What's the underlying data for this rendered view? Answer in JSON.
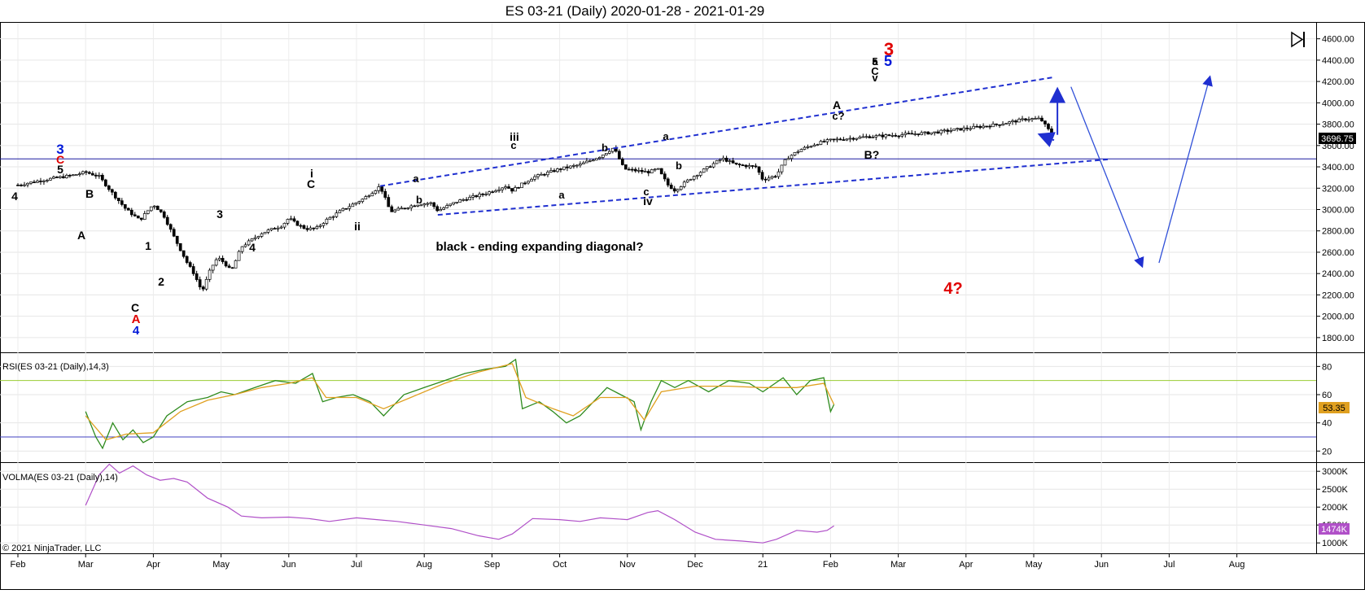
{
  "chart_data": [
    {
      "type": "candlestick",
      "title": "ES 03-21 (Daily)  2020-01-28 - 2021-01-29",
      "ylim": [
        1700,
        4750
      ],
      "y_ticks": [
        "1800.00",
        "2000.00",
        "2200.00",
        "2400.00",
        "2600.00",
        "2800.00",
        "3000.00",
        "3200.00",
        "3400.00",
        "3600.00",
        "3800.00",
        "4000.00",
        "4200.00",
        "4400.00",
        "4600.00"
      ],
      "x_ticks": [
        "Feb",
        "Mar",
        "Apr",
        "May",
        "Jun",
        "Jul",
        "Aug",
        "Sep",
        "Oct",
        "Nov",
        "Dec",
        "21",
        "Feb",
        "Mar",
        "Apr",
        "May",
        "Jun",
        "Jul",
        "Aug"
      ],
      "last_price": "3696.75",
      "horizontal_line": 3475,
      "price_path": [
        [
          0,
          3230
        ],
        [
          0.4,
          3280
        ],
        [
          0.8,
          3320
        ],
        [
          1.0,
          3350
        ],
        [
          1.2,
          3310
        ],
        [
          1.4,
          3150
        ],
        [
          1.6,
          3000
        ],
        [
          1.8,
          2900
        ],
        [
          2.0,
          3050
        ],
        [
          2.15,
          2950
        ],
        [
          2.3,
          2750
        ],
        [
          2.5,
          2500
        ],
        [
          2.6,
          2400
        ],
        [
          2.72,
          2230
        ],
        [
          2.85,
          2450
        ],
        [
          2.95,
          2550
        ],
        [
          3.05,
          2500
        ],
        [
          3.15,
          2420
        ],
        [
          3.3,
          2650
        ],
        [
          3.6,
          2780
        ],
        [
          3.9,
          2850
        ],
        [
          4.0,
          2920
        ],
        [
          4.1,
          2870
        ],
        [
          4.25,
          2820
        ],
        [
          4.4,
          2820
        ],
        [
          4.55,
          2900
        ],
        [
          4.8,
          3000
        ],
        [
          5.1,
          3100
        ],
        [
          5.35,
          3220
        ],
        [
          5.5,
          2980
        ],
        [
          5.9,
          3050
        ],
        [
          6.1,
          3060
        ],
        [
          6.2,
          2990
        ],
        [
          6.5,
          3080
        ],
        [
          6.9,
          3150
        ],
        [
          7.2,
          3220
        ],
        [
          7.3,
          3180
        ],
        [
          7.6,
          3300
        ],
        [
          8.0,
          3380
        ],
        [
          8.3,
          3420
        ],
        [
          8.6,
          3500
        ],
        [
          8.8,
          3580
        ],
        [
          8.95,
          3380
        ],
        [
          9.3,
          3350
        ],
        [
          9.45,
          3380
        ],
        [
          9.6,
          3230
        ],
        [
          9.7,
          3180
        ],
        [
          9.95,
          3300
        ],
        [
          10.2,
          3400
        ],
        [
          10.4,
          3480
        ],
        [
          10.6,
          3420
        ],
        [
          10.9,
          3400
        ],
        [
          11.0,
          3280
        ],
        [
          11.2,
          3320
        ],
        [
          11.35,
          3480
        ],
        [
          11.55,
          3560
        ],
        [
          11.8,
          3620
        ],
        [
          12.0,
          3650
        ],
        [
          12.5,
          3680
        ],
        [
          13.0,
          3700
        ],
        [
          13.5,
          3720
        ],
        [
          14.0,
          3760
        ],
        [
          14.5,
          3800
        ],
        [
          14.9,
          3850
        ],
        [
          15.1,
          3850
        ],
        [
          15.25,
          3720
        ],
        [
          15.3,
          3696
        ]
      ],
      "channel_lines": [
        {
          "from": [
            5.35,
            3220
          ],
          "to": [
            15.3,
            4240
          ]
        },
        {
          "from": [
            6.2,
            2950
          ],
          "to": [
            16.1,
            3470
          ]
        }
      ],
      "projection": [
        [
          15.3,
          3696
        ],
        [
          16.1,
          3420
        ],
        [
          16.6,
          2500
        ],
        [
          16.75,
          2520
        ],
        [
          17.3,
          4220
        ]
      ],
      "wave_labels": [
        "4",
        "5",
        "3",
        "C",
        "B",
        "A",
        "1",
        "2",
        "C",
        "A",
        "4",
        "3",
        "4",
        "i",
        "C",
        "ii",
        "a",
        "b",
        "iii",
        "c",
        "a",
        "b",
        "iv",
        "c",
        "a",
        "b",
        "a",
        "A",
        "c?",
        "B?",
        "5",
        "C",
        "v",
        "3",
        "5",
        "4?"
      ],
      "annotation": "black - ending expanding diagonal?",
      "copyright": "© 2021 NinjaTrader, LLC"
    },
    {
      "type": "line",
      "title": "RSI(ES 03-21 (Daily),14,3)",
      "ylim": [
        15,
        90
      ],
      "y_ticks": [
        "20",
        "40",
        "60",
        "80"
      ],
      "levels": [
        30,
        70
      ],
      "last_value": "53.35",
      "series": [
        {
          "color": "#2e8b1e",
          "values": [
            [
              1.0,
              48
            ],
            [
              1.15,
              30
            ],
            [
              1.25,
              22
            ],
            [
              1.4,
              40
            ],
            [
              1.55,
              28
            ],
            [
              1.7,
              35
            ],
            [
              1.85,
              26
            ],
            [
              2.0,
              30
            ],
            [
              2.2,
              45
            ],
            [
              2.5,
              55
            ],
            [
              2.8,
              58
            ],
            [
              3.0,
              62
            ],
            [
              3.2,
              60
            ],
            [
              3.5,
              65
            ],
            [
              3.8,
              70
            ],
            [
              4.1,
              68
            ],
            [
              4.35,
              75
            ],
            [
              4.5,
              55
            ],
            [
              4.7,
              58
            ],
            [
              4.95,
              60
            ],
            [
              5.2,
              55
            ],
            [
              5.4,
              45
            ],
            [
              5.7,
              60
            ],
            [
              6.0,
              65
            ],
            [
              6.3,
              70
            ],
            [
              6.6,
              75
            ],
            [
              6.9,
              78
            ],
            [
              7.2,
              80
            ],
            [
              7.35,
              85
            ],
            [
              7.45,
              50
            ],
            [
              7.7,
              55
            ],
            [
              7.9,
              48
            ],
            [
              8.1,
              40
            ],
            [
              8.3,
              45
            ],
            [
              8.5,
              55
            ],
            [
              8.7,
              65
            ],
            [
              8.9,
              60
            ],
            [
              9.1,
              55
            ],
            [
              9.2,
              35
            ],
            [
              9.35,
              55
            ],
            [
              9.5,
              70
            ],
            [
              9.7,
              65
            ],
            [
              9.9,
              70
            ],
            [
              10.2,
              62
            ],
            [
              10.5,
              70
            ],
            [
              10.8,
              68
            ],
            [
              11.0,
              62
            ],
            [
              11.3,
              72
            ],
            [
              11.5,
              60
            ],
            [
              11.7,
              70
            ],
            [
              11.9,
              72
            ],
            [
              12.0,
              48
            ],
            [
              12.05,
              53
            ]
          ]
        },
        {
          "color": "#e0a020",
          "values": [
            [
              1.0,
              45
            ],
            [
              1.3,
              28
            ],
            [
              1.6,
              32
            ],
            [
              2.0,
              33
            ],
            [
              2.4,
              48
            ],
            [
              2.8,
              56
            ],
            [
              3.2,
              60
            ],
            [
              3.6,
              65
            ],
            [
              4.0,
              68
            ],
            [
              4.35,
              72
            ],
            [
              4.55,
              58
            ],
            [
              5.0,
              58
            ],
            [
              5.4,
              50
            ],
            [
              5.8,
              58
            ],
            [
              6.3,
              68
            ],
            [
              6.8,
              76
            ],
            [
              7.3,
              82
            ],
            [
              7.5,
              58
            ],
            [
              7.9,
              50
            ],
            [
              8.2,
              45
            ],
            [
              8.6,
              58
            ],
            [
              9.0,
              58
            ],
            [
              9.25,
              42
            ],
            [
              9.5,
              62
            ],
            [
              10.0,
              66
            ],
            [
              10.5,
              66
            ],
            [
              11.0,
              65
            ],
            [
              11.5,
              65
            ],
            [
              11.9,
              68
            ],
            [
              12.05,
              53
            ]
          ]
        }
      ]
    },
    {
      "type": "line",
      "title": "VOLMA(ES 03-21 (Daily),14)",
      "ylim": [
        800,
        3300
      ],
      "y_ticks": [
        "1000K",
        "1500K",
        "2000K",
        "2500K",
        "3000K"
      ],
      "last_value": "1474K",
      "series": [
        {
          "color": "#b050c8",
          "values": [
            [
              1.0,
              2050
            ],
            [
              1.2,
              2900
            ],
            [
              1.35,
              3200
            ],
            [
              1.5,
              2950
            ],
            [
              1.7,
              3150
            ],
            [
              1.9,
              2900
            ],
            [
              2.1,
              2750
            ],
            [
              2.3,
              2800
            ],
            [
              2.5,
              2700
            ],
            [
              2.8,
              2250
            ],
            [
              3.1,
              2000
            ],
            [
              3.3,
              1750
            ],
            [
              3.6,
              1700
            ],
            [
              4.0,
              1720
            ],
            [
              4.3,
              1680
            ],
            [
              4.6,
              1600
            ],
            [
              5.0,
              1700
            ],
            [
              5.3,
              1650
            ],
            [
              5.6,
              1600
            ],
            [
              6.0,
              1500
            ],
            [
              6.4,
              1400
            ],
            [
              6.8,
              1200
            ],
            [
              7.1,
              1100
            ],
            [
              7.3,
              1250
            ],
            [
              7.6,
              1680
            ],
            [
              8.0,
              1650
            ],
            [
              8.3,
              1600
            ],
            [
              8.6,
              1700
            ],
            [
              9.0,
              1650
            ],
            [
              9.3,
              1850
            ],
            [
              9.45,
              1900
            ],
            [
              9.7,
              1650
            ],
            [
              10.0,
              1300
            ],
            [
              10.3,
              1100
            ],
            [
              10.7,
              1050
            ],
            [
              11.0,
              1000
            ],
            [
              11.2,
              1100
            ],
            [
              11.5,
              1350
            ],
            [
              11.8,
              1300
            ],
            [
              11.95,
              1350
            ],
            [
              12.05,
              1474
            ]
          ]
        }
      ]
    }
  ]
}
